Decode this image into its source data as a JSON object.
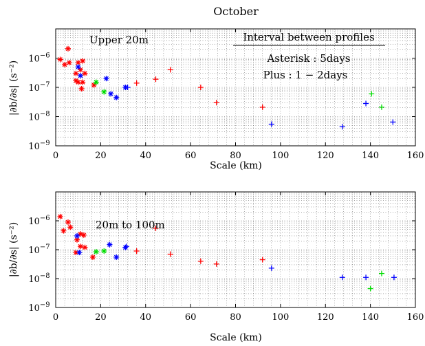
{
  "figure_title": "October",
  "colors": {
    "red": "#ff0000",
    "blue": "#0000ff",
    "green": "#00dd00"
  },
  "annotations": {
    "interval_header": "Interval between profiles",
    "asterisk_note": "Asterisk : 5days",
    "plus_note": "Plus : 1 − 2days"
  },
  "chart_data": [
    {
      "type": "scatter",
      "title": "Upper 20m",
      "xlabel": "Scale (km)",
      "ylabel": "|∂b/∂s| (s⁻²)",
      "xlim": [
        0,
        160
      ],
      "ylim": [
        1e-09,
        1e-05
      ],
      "yscale": "log",
      "grid": true,
      "x_ticks": [
        "0",
        "20",
        "40",
        "60",
        "80",
        "100",
        "120",
        "140",
        "160"
      ],
      "y_ticks": [
        {
          "base": "10",
          "exp": "−9"
        },
        {
          "base": "10",
          "exp": "−8"
        },
        {
          "base": "10",
          "exp": "−7"
        },
        {
          "base": "10",
          "exp": "−6"
        }
      ],
      "points": [
        {
          "x": 2,
          "y": 9e-07,
          "marker": "asterisk",
          "color": "red"
        },
        {
          "x": 4,
          "y": 6e-07,
          "marker": "asterisk",
          "color": "red"
        },
        {
          "x": 5.5,
          "y": 2.1e-06,
          "marker": "asterisk",
          "color": "red"
        },
        {
          "x": 6,
          "y": 7e-07,
          "marker": "asterisk",
          "color": "red"
        },
        {
          "x": 9,
          "y": 3e-07,
          "marker": "asterisk",
          "color": "red"
        },
        {
          "x": 9,
          "y": 1.7e-07,
          "marker": "asterisk",
          "color": "red"
        },
        {
          "x": 10,
          "y": 1.5e-07,
          "marker": "asterisk",
          "color": "red"
        },
        {
          "x": 10,
          "y": 7e-07,
          "marker": "asterisk",
          "color": "red"
        },
        {
          "x": 11,
          "y": 4e-07,
          "marker": "asterisk",
          "color": "red"
        },
        {
          "x": 11.5,
          "y": 9e-08,
          "marker": "asterisk",
          "color": "red"
        },
        {
          "x": 12,
          "y": 1.5e-07,
          "marker": "asterisk",
          "color": "red"
        },
        {
          "x": 12,
          "y": 8e-07,
          "marker": "asterisk",
          "color": "red"
        },
        {
          "x": 13,
          "y": 3e-07,
          "marker": "asterisk",
          "color": "red"
        },
        {
          "x": 17,
          "y": 1.2e-07,
          "marker": "asterisk",
          "color": "red"
        },
        {
          "x": 10,
          "y": 5e-07,
          "marker": "asterisk",
          "color": "blue"
        },
        {
          "x": 11,
          "y": 2.5e-07,
          "marker": "asterisk",
          "color": "blue"
        },
        {
          "x": 22.5,
          "y": 2e-07,
          "marker": "asterisk",
          "color": "blue"
        },
        {
          "x": 24.5,
          "y": 6e-08,
          "marker": "asterisk",
          "color": "blue"
        },
        {
          "x": 27,
          "y": 4.5e-08,
          "marker": "asterisk",
          "color": "blue"
        },
        {
          "x": 31,
          "y": 1e-07,
          "marker": "asterisk",
          "color": "blue"
        },
        {
          "x": 18,
          "y": 1.5e-07,
          "marker": "asterisk",
          "color": "green"
        },
        {
          "x": 21.5,
          "y": 7e-08,
          "marker": "asterisk",
          "color": "green"
        },
        {
          "x": 36,
          "y": 1.4e-07,
          "marker": "plus",
          "color": "red"
        },
        {
          "x": 44.5,
          "y": 1.9e-07,
          "marker": "plus",
          "color": "red"
        },
        {
          "x": 51,
          "y": 4e-07,
          "marker": "plus",
          "color": "red"
        },
        {
          "x": 64.5,
          "y": 1e-07,
          "marker": "plus",
          "color": "red"
        },
        {
          "x": 71.5,
          "y": 3e-08,
          "marker": "plus",
          "color": "red"
        },
        {
          "x": 92,
          "y": 2.1e-08,
          "marker": "plus",
          "color": "red"
        },
        {
          "x": 32,
          "y": 1e-07,
          "marker": "plus",
          "color": "blue"
        },
        {
          "x": 96,
          "y": 5.5e-09,
          "marker": "plus",
          "color": "blue"
        },
        {
          "x": 127.5,
          "y": 4.5e-09,
          "marker": "plus",
          "color": "blue"
        },
        {
          "x": 138,
          "y": 2.8e-08,
          "marker": "plus",
          "color": "blue"
        },
        {
          "x": 150,
          "y": 6.5e-09,
          "marker": "plus",
          "color": "blue"
        },
        {
          "x": 140.5,
          "y": 6e-08,
          "marker": "plus",
          "color": "green"
        },
        {
          "x": 145,
          "y": 2.1e-08,
          "marker": "plus",
          "color": "green"
        }
      ]
    },
    {
      "type": "scatter",
      "title": "20m to 100m",
      "xlabel": "Scale (km)",
      "ylabel": "|∂b/∂s| (s⁻²)",
      "xlim": [
        0,
        160
      ],
      "ylim": [
        1e-09,
        1e-05
      ],
      "yscale": "log",
      "grid": true,
      "x_ticks": [
        "0",
        "20",
        "40",
        "60",
        "80",
        "100",
        "120",
        "140",
        "160"
      ],
      "y_ticks": [
        {
          "base": "10",
          "exp": "−9"
        },
        {
          "base": "10",
          "exp": "−8"
        },
        {
          "base": "10",
          "exp": "−7"
        },
        {
          "base": "10",
          "exp": "−6"
        }
      ],
      "points": [
        {
          "x": 2,
          "y": 1.4e-06,
          "marker": "asterisk",
          "color": "red"
        },
        {
          "x": 3.5,
          "y": 4.5e-07,
          "marker": "asterisk",
          "color": "red"
        },
        {
          "x": 5.5,
          "y": 9e-07,
          "marker": "asterisk",
          "color": "red"
        },
        {
          "x": 6.5,
          "y": 6e-07,
          "marker": "asterisk",
          "color": "red"
        },
        {
          "x": 9,
          "y": 8e-08,
          "marker": "asterisk",
          "color": "red"
        },
        {
          "x": 9.5,
          "y": 2.2e-07,
          "marker": "asterisk",
          "color": "red"
        },
        {
          "x": 11,
          "y": 3.5e-07,
          "marker": "asterisk",
          "color": "red"
        },
        {
          "x": 11,
          "y": 1.3e-07,
          "marker": "asterisk",
          "color": "red"
        },
        {
          "x": 12.5,
          "y": 3.2e-07,
          "marker": "asterisk",
          "color": "red"
        },
        {
          "x": 13,
          "y": 1.2e-07,
          "marker": "asterisk",
          "color": "red"
        },
        {
          "x": 16.5,
          "y": 5.5e-08,
          "marker": "asterisk",
          "color": "red"
        },
        {
          "x": 9.5,
          "y": 3e-07,
          "marker": "asterisk",
          "color": "blue"
        },
        {
          "x": 10.5,
          "y": 8e-08,
          "marker": "asterisk",
          "color": "blue"
        },
        {
          "x": 24,
          "y": 1.5e-07,
          "marker": "asterisk",
          "color": "blue"
        },
        {
          "x": 27,
          "y": 5.5e-08,
          "marker": "asterisk",
          "color": "blue"
        },
        {
          "x": 31,
          "y": 1.2e-07,
          "marker": "asterisk",
          "color": "blue"
        },
        {
          "x": 18,
          "y": 8.5e-08,
          "marker": "asterisk",
          "color": "green"
        },
        {
          "x": 21.5,
          "y": 9e-08,
          "marker": "asterisk",
          "color": "green"
        },
        {
          "x": 36,
          "y": 9e-08,
          "marker": "plus",
          "color": "red"
        },
        {
          "x": 44.5,
          "y": 5.5e-07,
          "marker": "plus",
          "color": "red"
        },
        {
          "x": 51,
          "y": 7e-08,
          "marker": "plus",
          "color": "red"
        },
        {
          "x": 64.5,
          "y": 4e-08,
          "marker": "plus",
          "color": "red"
        },
        {
          "x": 71.5,
          "y": 3.2e-08,
          "marker": "plus",
          "color": "red"
        },
        {
          "x": 92,
          "y": 4.5e-08,
          "marker": "plus",
          "color": "red"
        },
        {
          "x": 31.5,
          "y": 1.3e-07,
          "marker": "plus",
          "color": "blue"
        },
        {
          "x": 96,
          "y": 2.3e-08,
          "marker": "plus",
          "color": "blue"
        },
        {
          "x": 127.5,
          "y": 1.1e-08,
          "marker": "plus",
          "color": "blue"
        },
        {
          "x": 138,
          "y": 1.1e-08,
          "marker": "plus",
          "color": "blue"
        },
        {
          "x": 150.5,
          "y": 1.1e-08,
          "marker": "plus",
          "color": "blue"
        },
        {
          "x": 140,
          "y": 4.5e-09,
          "marker": "plus",
          "color": "green"
        },
        {
          "x": 145,
          "y": 1.5e-08,
          "marker": "plus",
          "color": "green"
        }
      ]
    }
  ]
}
